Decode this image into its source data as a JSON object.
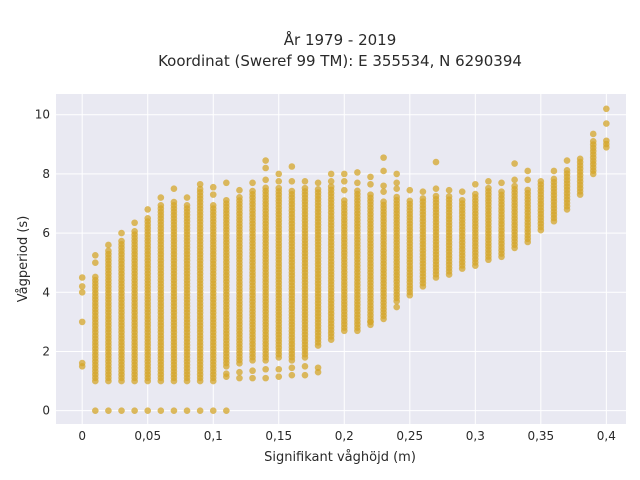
{
  "chart_data": {
    "type": "scatter",
    "title_line1": "År 1979 - 2019",
    "title_line2": "Koordinat (Sweref 99 TM): E 355534, N 6290394",
    "xlabel": "Signifikant våghöjd (m)",
    "ylabel": "Vågperiod (s)",
    "xlim": [
      -0.02,
      0.415
    ],
    "ylim": [
      -0.45,
      10.7
    ],
    "x_ticks": [
      0,
      0.05,
      0.1,
      0.15,
      0.2,
      0.25,
      0.3,
      0.35,
      0.4
    ],
    "x_tick_labels": [
      "0",
      "0,05",
      "0,1",
      "0,15",
      "0,2",
      "0,25",
      "0,3",
      "0,35",
      "0,4"
    ],
    "y_ticks": [
      0,
      2,
      4,
      6,
      8,
      10
    ],
    "y_tick_labels": [
      "0",
      "2",
      "4",
      "6",
      "8",
      "10"
    ],
    "grid": true,
    "background": "#e9e9f2",
    "marker_color": "#d4a52a",
    "columns": [
      {
        "x": 0.0,
        "ymin": 1.5,
        "ymax": 1.65,
        "extra": [
          3.0,
          4.0,
          4.2,
          4.5
        ]
      },
      {
        "x": 0.01,
        "ymin": 1.0,
        "ymax": 4.6,
        "extra": [
          0,
          5.0,
          5.25
        ]
      },
      {
        "x": 0.02,
        "ymin": 1.0,
        "ymax": 5.4,
        "extra": [
          0,
          5.6
        ]
      },
      {
        "x": 0.03,
        "ymin": 1.0,
        "ymax": 5.8,
        "extra": [
          0,
          6.0
        ]
      },
      {
        "x": 0.04,
        "ymin": 1.0,
        "ymax": 6.1,
        "extra": [
          0,
          6.35
        ]
      },
      {
        "x": 0.05,
        "ymin": 1.0,
        "ymax": 6.5,
        "extra": [
          0,
          6.8
        ]
      },
      {
        "x": 0.06,
        "ymin": 1.0,
        "ymax": 7.0,
        "extra": [
          0,
          7.2
        ]
      },
      {
        "x": 0.07,
        "ymin": 1.0,
        "ymax": 7.1,
        "extra": [
          0,
          7.5
        ]
      },
      {
        "x": 0.08,
        "ymin": 1.0,
        "ymax": 7.0,
        "extra": [
          0,
          7.2
        ]
      },
      {
        "x": 0.09,
        "ymin": 1.0,
        "ymax": 7.5,
        "extra": [
          0,
          7.65
        ]
      },
      {
        "x": 0.1,
        "ymin": 1.0,
        "ymax": 7.0,
        "extra": [
          0,
          7.3,
          7.55
        ]
      },
      {
        "x": 0.11,
        "ymin": 1.5,
        "ymax": 7.2,
        "extra": [
          0,
          1.15,
          1.25,
          7.7
        ]
      },
      {
        "x": 0.12,
        "ymin": 1.6,
        "ymax": 7.3,
        "extra": [
          1.1,
          1.3,
          7.45
        ]
      },
      {
        "x": 0.13,
        "ymin": 1.7,
        "ymax": 7.5,
        "extra": [
          1.1,
          1.35,
          7.7
        ]
      },
      {
        "x": 0.14,
        "ymin": 1.7,
        "ymax": 7.6,
        "extra": [
          1.1,
          1.4,
          7.8,
          8.2,
          8.45
        ]
      },
      {
        "x": 0.15,
        "ymin": 1.8,
        "ymax": 7.6,
        "extra": [
          1.15,
          1.4,
          7.75,
          8.0
        ]
      },
      {
        "x": 0.16,
        "ymin": 1.7,
        "ymax": 7.5,
        "extra": [
          1.2,
          1.45,
          7.75,
          8.25
        ]
      },
      {
        "x": 0.17,
        "ymin": 1.8,
        "ymax": 7.6,
        "extra": [
          1.2,
          1.5,
          7.75
        ]
      },
      {
        "x": 0.18,
        "ymin": 2.2,
        "ymax": 7.5,
        "extra": [
          1.3,
          1.45,
          7.7
        ]
      },
      {
        "x": 0.19,
        "ymin": 2.4,
        "ymax": 7.6,
        "extra": [
          7.75,
          8.0
        ]
      },
      {
        "x": 0.2,
        "ymin": 2.7,
        "ymax": 7.2,
        "extra": [
          7.45,
          7.75,
          8.0
        ]
      },
      {
        "x": 0.21,
        "ymin": 2.7,
        "ymax": 7.5,
        "extra": [
          7.7,
          8.05
        ]
      },
      {
        "x": 0.22,
        "ymin": 2.9,
        "ymax": 7.4,
        "extra": [
          3.0,
          7.65,
          7.9
        ]
      },
      {
        "x": 0.23,
        "ymin": 3.1,
        "ymax": 7.1,
        "extra": [
          7.4,
          7.6,
          8.1,
          8.55
        ]
      },
      {
        "x": 0.24,
        "ymin": 3.7,
        "ymax": 7.3,
        "extra": [
          3.5,
          7.5,
          7.7,
          8.0
        ]
      },
      {
        "x": 0.25,
        "ymin": 3.9,
        "ymax": 7.1,
        "extra": [
          7.45
        ]
      },
      {
        "x": 0.26,
        "ymin": 4.2,
        "ymax": 7.2,
        "extra": [
          7.4
        ]
      },
      {
        "x": 0.27,
        "ymin": 4.5,
        "ymax": 7.3,
        "extra": [
          7.5,
          8.4
        ]
      },
      {
        "x": 0.28,
        "ymin": 4.6,
        "ymax": 7.3,
        "extra": [
          7.45
        ]
      },
      {
        "x": 0.29,
        "ymin": 4.8,
        "ymax": 7.2,
        "extra": [
          7.4
        ]
      },
      {
        "x": 0.3,
        "ymin": 4.9,
        "ymax": 7.4,
        "extra": [
          7.65
        ]
      },
      {
        "x": 0.31,
        "ymin": 5.1,
        "ymax": 7.6,
        "extra": [
          7.75
        ]
      },
      {
        "x": 0.32,
        "ymin": 5.2,
        "ymax": 7.5,
        "extra": [
          7.7
        ]
      },
      {
        "x": 0.33,
        "ymin": 5.5,
        "ymax": 7.6,
        "extra": [
          7.8,
          8.35
        ]
      },
      {
        "x": 0.34,
        "ymin": 5.7,
        "ymax": 7.5,
        "extra": [
          7.8,
          8.1
        ]
      },
      {
        "x": 0.35,
        "ymin": 6.1,
        "ymax": 7.8,
        "extra": []
      },
      {
        "x": 0.36,
        "ymin": 6.4,
        "ymax": 7.9,
        "extra": [
          8.1
        ]
      },
      {
        "x": 0.37,
        "ymin": 6.8,
        "ymax": 8.2,
        "extra": [
          8.45
        ]
      },
      {
        "x": 0.38,
        "ymin": 7.3,
        "ymax": 8.6,
        "extra": []
      },
      {
        "x": 0.39,
        "ymin": 8.0,
        "ymax": 9.2,
        "extra": [
          9.35
        ]
      },
      {
        "x": 0.4,
        "ymin": 8.9,
        "ymax": 9.2,
        "extra": [
          9.7,
          10.2
        ]
      }
    ]
  }
}
